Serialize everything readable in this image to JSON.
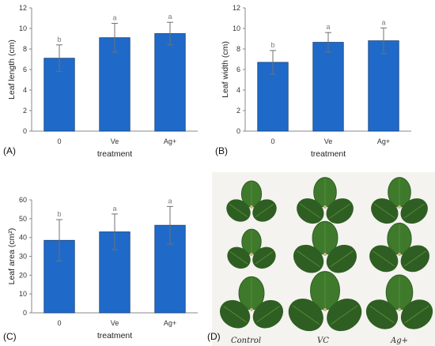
{
  "panels": {
    "A": "(A)",
    "B": "(B)",
    "C": "(C)",
    "D": "(D)"
  },
  "colors": {
    "bar": "#1f6ac9",
    "bar_edge": "#173f7a",
    "error": "#707070",
    "axis": "#8a8a8a",
    "photo_bg": "#f4f3ef",
    "leaf_dark": "#2f5e22",
    "leaf_mid": "#3f7a2c",
    "leaf_light": "#5b9440"
  },
  "chart_data": [
    {
      "panel": "A",
      "type": "bar",
      "categories": [
        "0",
        "Ve",
        "Ag+"
      ],
      "values": [
        7.1,
        9.1,
        9.5
      ],
      "errors": [
        1.3,
        1.4,
        1.1
      ],
      "significance": [
        "b",
        "a",
        "a"
      ],
      "xlabel": "treatment",
      "ylabel": "Leaf length (cm)",
      "ylim": [
        0,
        12
      ],
      "yticks": [
        "0",
        "2",
        "4",
        "6",
        "8",
        "10",
        "12"
      ],
      "grid": false
    },
    {
      "panel": "B",
      "type": "bar",
      "categories": [
        "0",
        "Ve",
        "Ag+"
      ],
      "values": [
        6.7,
        8.65,
        8.8
      ],
      "errors": [
        1.15,
        0.95,
        1.25
      ],
      "significance": [
        "b",
        "a",
        "a"
      ],
      "xlabel": "treatment",
      "ylabel": "Leaf width (cm)",
      "ylim": [
        0,
        12
      ],
      "yticks": [
        "0",
        "2",
        "4",
        "6",
        "8",
        "10",
        "12"
      ],
      "grid": false
    },
    {
      "panel": "C",
      "type": "bar",
      "categories": [
        "0",
        "Ve",
        "Ag+"
      ],
      "values": [
        38.5,
        43.0,
        46.5
      ],
      "errors": [
        11.0,
        9.5,
        10.0
      ],
      "significance": [
        "b",
        "a",
        "a"
      ],
      "xlabel": "treatment",
      "ylabel": "Leaf area (cm²)",
      "ylim": [
        0,
        60
      ],
      "yticks": [
        "0",
        "10",
        "20",
        "30",
        "40",
        "50",
        "60"
      ],
      "grid": false
    }
  ],
  "photo": {
    "labels": [
      "Control",
      "VC",
      "Ag+"
    ],
    "leaf_icon": "trifoliate-strawberry-leaf"
  }
}
